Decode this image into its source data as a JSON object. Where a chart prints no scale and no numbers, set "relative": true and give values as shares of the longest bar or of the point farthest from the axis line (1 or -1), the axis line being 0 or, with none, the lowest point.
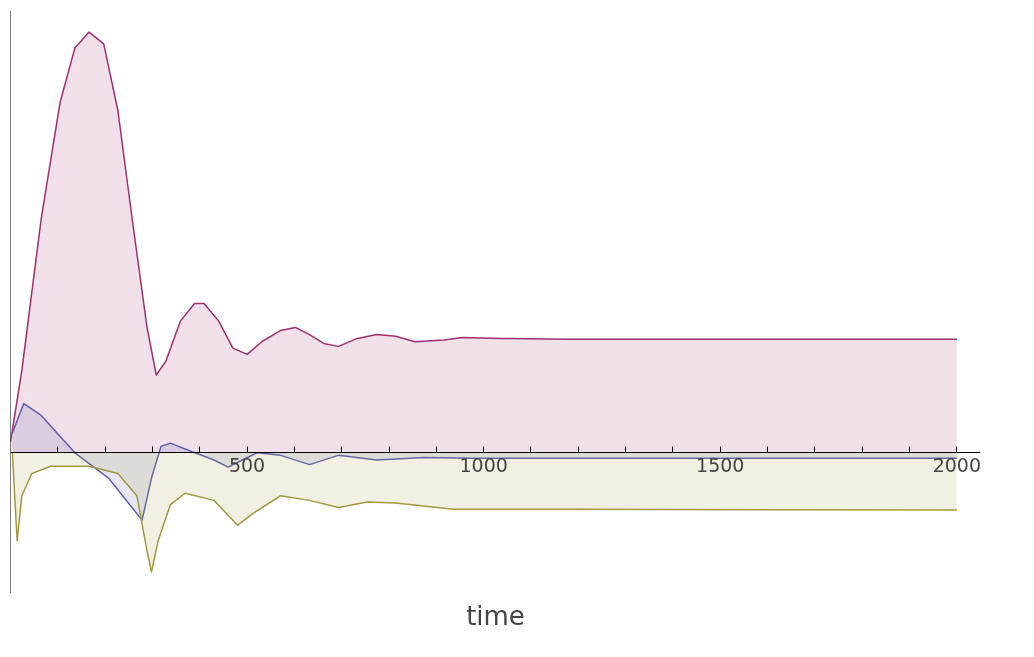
{
  "chart_data": {
    "type": "area",
    "relative": true,
    "xlabel": "time",
    "xlim": [
      0,
      2050
    ],
    "xticks": [
      {
        "value": 100,
        "label": null
      },
      {
        "value": 200,
        "label": null
      },
      {
        "value": 300,
        "label": null
      },
      {
        "value": 400,
        "label": null
      },
      500,
      {
        "value": 600,
        "label": null
      },
      {
        "value": 700,
        "label": null
      },
      {
        "value": 800,
        "label": null
      },
      {
        "value": 900,
        "label": null
      },
      1000,
      {
        "value": 1100,
        "label": null
      },
      {
        "value": 1200,
        "label": null
      },
      {
        "value": 1300,
        "label": null
      },
      {
        "value": 1400,
        "label": null
      },
      1500,
      {
        "value": 1600,
        "label": null
      },
      {
        "value": 1700,
        "label": null
      },
      {
        "value": 1800,
        "label": null
      },
      {
        "value": 1900,
        "label": null
      },
      2000
    ],
    "tick_labels": "x",
    "grid": false,
    "series": [
      {
        "color": "#a0306a",
        "x": [
          0,
          24,
          65,
          105,
          136,
          166,
          197,
          227,
          257,
          288,
          308,
          328,
          359,
          389,
          409,
          440,
          470,
          500,
          531,
          571,
          602,
          632,
          662,
          693,
          733,
          774,
          814,
          855,
          916,
          956,
          1037,
          1179,
          2000
        ],
        "values": [
          0.026,
          0.196,
          0.557,
          0.834,
          0.962,
          1,
          0.972,
          0.813,
          0.557,
          0.302,
          0.185,
          0.217,
          0.313,
          0.355,
          0.355,
          0.313,
          0.249,
          0.234,
          0.264,
          0.291,
          0.298,
          0.281,
          0.26,
          0.253,
          0.272,
          0.281,
          0.277,
          0.264,
          0.268,
          0.274,
          0.272,
          0.27,
          0.27
        ]
      },
      {
        "color": "#6060b0",
        "x": [
          4,
          28,
          65,
          136,
          207,
          278,
          298,
          318,
          338,
          369,
          430,
          460,
          490,
          521,
          571,
          632,
          693,
          774,
          875,
          977,
          2000
        ],
        "values": [
          0.047,
          0.117,
          0.089,
          0,
          -0.06,
          -0.16,
          -0.06,
          0.015,
          0.023,
          0.009,
          -0.017,
          -0.034,
          -0.017,
          0,
          -0.006,
          -0.028,
          -0.006,
          -0.017,
          -0.011,
          -0.013,
          -0.013
        ]
      },
      {
        "color": "#a09a40",
        "x": [
          4,
          14,
          24,
          45,
          85,
          166,
          227,
          267,
          288,
          298,
          312,
          338,
          369,
          430,
          480,
          511,
          571,
          632,
          693,
          754,
          814,
          936,
          1179,
          2000
        ],
        "values": [
          0,
          -0.209,
          -0.102,
          -0.049,
          -0.032,
          -0.032,
          -0.049,
          -0.102,
          -0.23,
          -0.283,
          -0.209,
          -0.123,
          -0.096,
          -0.113,
          -0.172,
          -0.145,
          -0.102,
          -0.113,
          -0.13,
          -0.117,
          -0.119,
          -0.134,
          -0.134,
          -0.136
        ]
      }
    ]
  }
}
